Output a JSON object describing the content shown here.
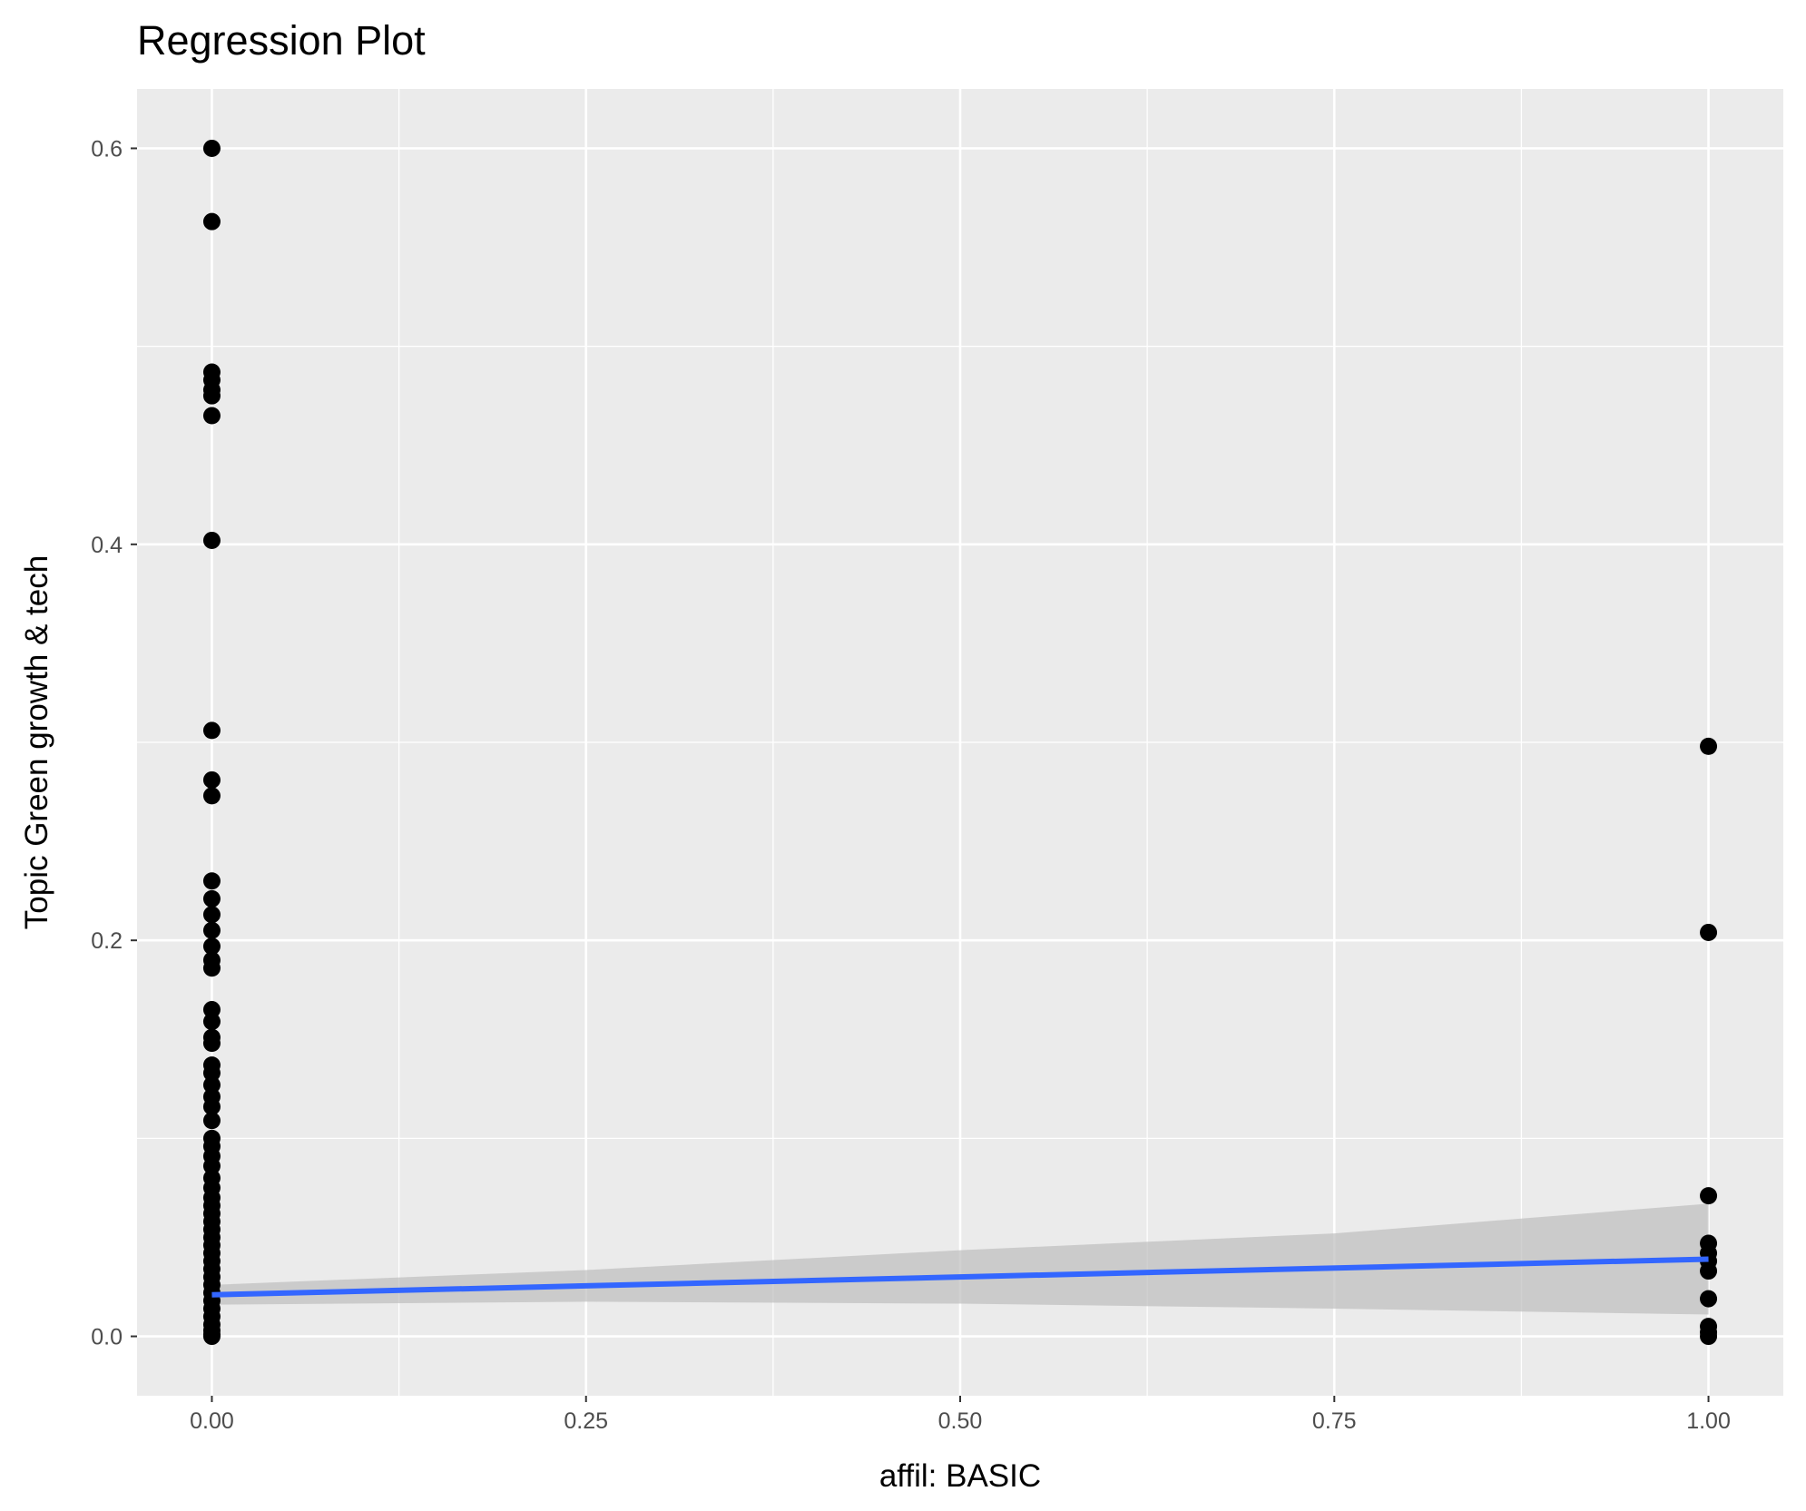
{
  "chart_data": {
    "type": "scatter",
    "title": "Regression Plot",
    "xlabel": "affil: BASIC",
    "ylabel": "Topic Green growth & tech",
    "xlim": [
      -0.05,
      1.05
    ],
    "ylim": [
      -0.03,
      0.63
    ],
    "xticks": [
      "0.00",
      "0.25",
      "0.50",
      "0.75",
      "1.00"
    ],
    "xtick_values": [
      0,
      0.25,
      0.5,
      0.75,
      1
    ],
    "yticks": [
      "0.0",
      "0.2",
      "0.4",
      "0.6"
    ],
    "ytick_values": [
      0,
      0.2,
      0.4,
      0.6
    ],
    "grid": true,
    "colors": {
      "panel": "#ebebeb",
      "grid": "#ffffff",
      "points": "#000000",
      "line": "#3366ff",
      "band": "#bebebe"
    },
    "points": {
      "x0": [
        0.6,
        0.563,
        0.487,
        0.483,
        0.478,
        0.475,
        0.465,
        0.402,
        0.306,
        0.281,
        0.273,
        0.23,
        0.221,
        0.213,
        0.205,
        0.197,
        0.19,
        0.186,
        0.165,
        0.159,
        0.151,
        0.148,
        0.137,
        0.133,
        0.127,
        0.121,
        0.116,
        0.109,
        0.1,
        0.096,
        0.091,
        0.086,
        0.08,
        0.075,
        0.07,
        0.066,
        0.062,
        0.058,
        0.054,
        0.05,
        0.046,
        0.042,
        0.038,
        0.034,
        0.03,
        0.026,
        0.022,
        0.018,
        0.014,
        0.01,
        0.006,
        0.003,
        0.001,
        0
      ],
      "x1": [
        0.298,
        0.204,
        0.071,
        0.047,
        0.042,
        0.038,
        0.033,
        0.019,
        0.005,
        0.002,
        0
      ]
    },
    "regression": {
      "x": [
        0,
        1
      ],
      "y": [
        0.021,
        0.039
      ]
    },
    "confidence_band": {
      "x": [
        0,
        0.25,
        0.5,
        0.75,
        1
      ],
      "lower": [
        0.016,
        0.0175,
        0.0165,
        0.014,
        0.011
      ],
      "upper": [
        0.026,
        0.0335,
        0.0435,
        0.052,
        0.067
      ]
    }
  }
}
